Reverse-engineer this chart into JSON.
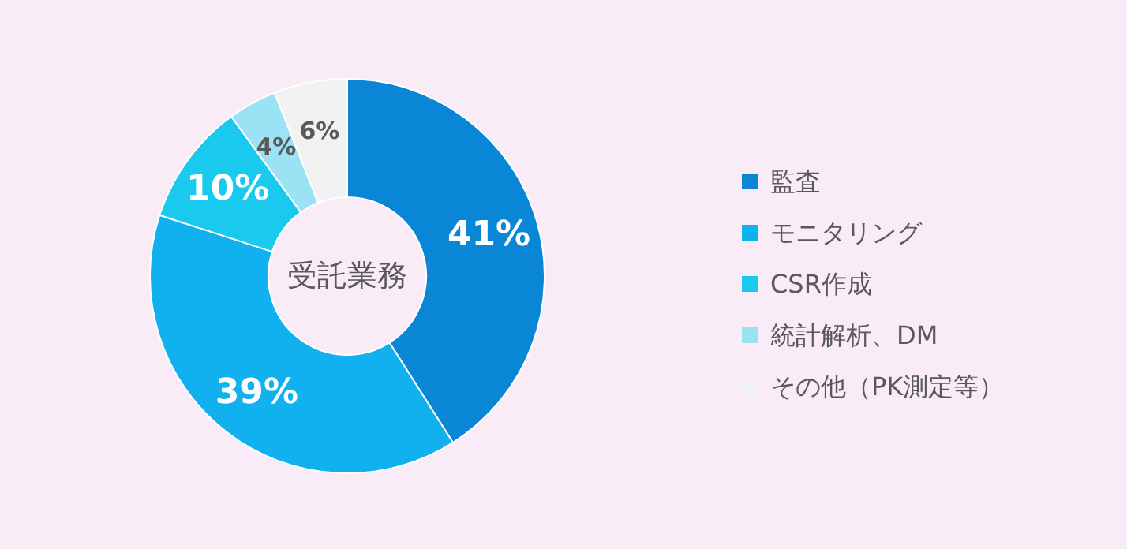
{
  "chart_data": {
    "type": "donut",
    "categories": [
      "監査",
      "モニタリング",
      "CSR作成",
      "統計解析、DM",
      "その他（PK測定等）"
    ],
    "values": [
      41,
      39,
      10,
      4,
      6
    ],
    "colors": [
      "#0a86d6",
      "#11b0ef",
      "#19c9ee",
      "#9be3f4",
      "#f2f2f2"
    ],
    "value_labels": [
      "41%",
      "39%",
      "10%",
      "4%",
      "6%"
    ],
    "annotations": [
      "受託業務"
    ],
    "legend": "right"
  }
}
